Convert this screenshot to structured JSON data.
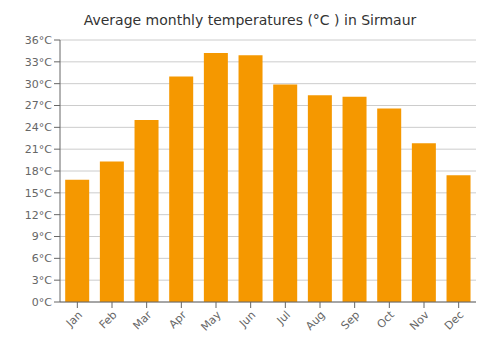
{
  "chart_data": {
    "type": "bar",
    "title": "Average monthly temperatures (°C ) in Sirmaur",
    "categories": [
      "Jan",
      "Feb",
      "Mar",
      "Apr",
      "May",
      "Jun",
      "Jul",
      "Aug",
      "Sep",
      "Oct",
      "Nov",
      "Dec"
    ],
    "values": [
      16.8,
      19.3,
      25.0,
      31.0,
      34.2,
      33.9,
      29.9,
      28.4,
      28.2,
      26.6,
      21.8,
      17.4
    ],
    "color": "#F59800",
    "ylim": [
      0,
      36
    ],
    "yticks": [
      {
        "value": 0,
        "label": "0°C"
      },
      {
        "value": 3,
        "label": "3°C"
      },
      {
        "value": 6,
        "label": "6°C"
      },
      {
        "value": 9,
        "label": "9°C"
      },
      {
        "value": 12,
        "label": "12°C"
      },
      {
        "value": 15,
        "label": "15°C"
      },
      {
        "value": 18,
        "label": "18°C"
      },
      {
        "value": 21,
        "label": "21°C"
      },
      {
        "value": 24,
        "label": "24°C"
      },
      {
        "value": 27,
        "label": "27°C"
      },
      {
        "value": 30,
        "label": "30°C"
      },
      {
        "value": 33,
        "label": "33°C"
      },
      {
        "value": 36,
        "label": "36°C"
      }
    ],
    "grid": true
  }
}
